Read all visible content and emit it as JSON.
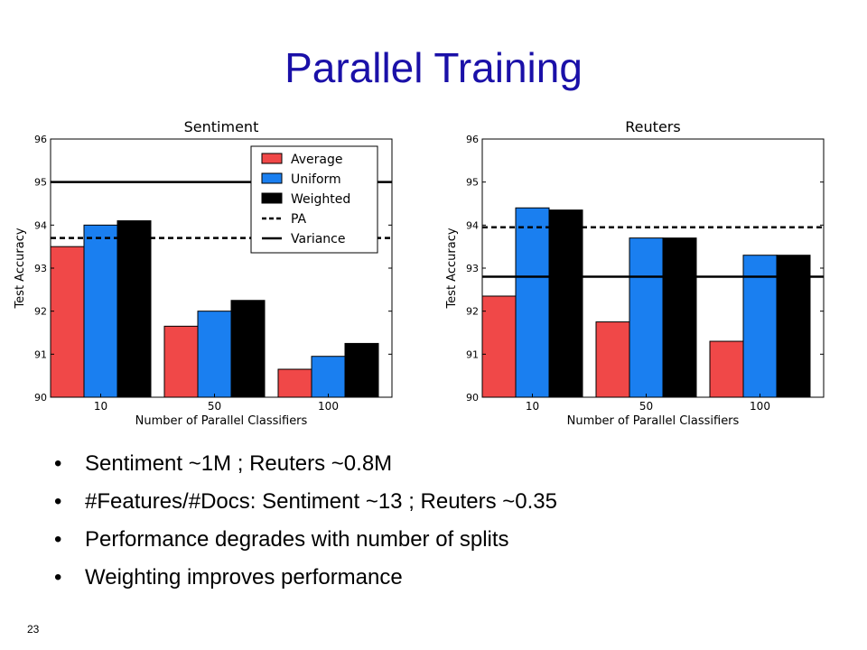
{
  "slide": {
    "title": "Parallel Training",
    "page_number": "23",
    "bullets": [
      "Sentiment ~1M ; Reuters ~0.8M",
      "#Features/#Docs: Sentiment ~13 ; Reuters ~0.35",
      "Performance degrades with number of splits",
      "Weighting improves performance"
    ]
  },
  "colors": {
    "title": "#1a10a8",
    "average": "#f04848",
    "uniform": "#1a7ff0",
    "weighted": "#000000"
  },
  "chart_data": [
    {
      "type": "bar",
      "title": "Sentiment",
      "xlabel": "Number of Parallel Classifiers",
      "ylabel": "Test Accuracy",
      "categories": [
        "10",
        "50",
        "100"
      ],
      "ylim": [
        90,
        96
      ],
      "yticks": [
        90,
        91,
        92,
        93,
        94,
        95,
        96
      ],
      "series": [
        {
          "name": "Average",
          "color": "#f04848",
          "values": [
            93.5,
            91.65,
            90.65
          ]
        },
        {
          "name": "Uniform",
          "color": "#1a7ff0",
          "values": [
            94.0,
            92.0,
            90.95
          ]
        },
        {
          "name": "Weighted",
          "color": "#000000",
          "values": [
            94.1,
            92.25,
            91.25
          ]
        }
      ],
      "reference_lines": [
        {
          "name": "PA",
          "style": "dashed",
          "value": 93.7
        },
        {
          "name": "Variance",
          "style": "solid",
          "value": 95.0
        }
      ],
      "legend": "top-right"
    },
    {
      "type": "bar",
      "title": "Reuters",
      "xlabel": "Number of Parallel Classifiers",
      "ylabel": "Test Accuracy",
      "categories": [
        "10",
        "50",
        "100"
      ],
      "ylim": [
        90,
        96
      ],
      "yticks": [
        90,
        91,
        92,
        93,
        94,
        95,
        96
      ],
      "series": [
        {
          "name": "Average",
          "color": "#f04848",
          "values": [
            92.35,
            91.75,
            91.3
          ]
        },
        {
          "name": "Uniform",
          "color": "#1a7ff0",
          "values": [
            94.4,
            93.7,
            93.3
          ]
        },
        {
          "name": "Weighted",
          "color": "#000000",
          "values": [
            94.35,
            93.7,
            93.3
          ]
        }
      ],
      "reference_lines": [
        {
          "name": "PA",
          "style": "dashed",
          "value": 93.95
        },
        {
          "name": "Variance",
          "style": "solid",
          "value": 92.8
        }
      ]
    }
  ]
}
